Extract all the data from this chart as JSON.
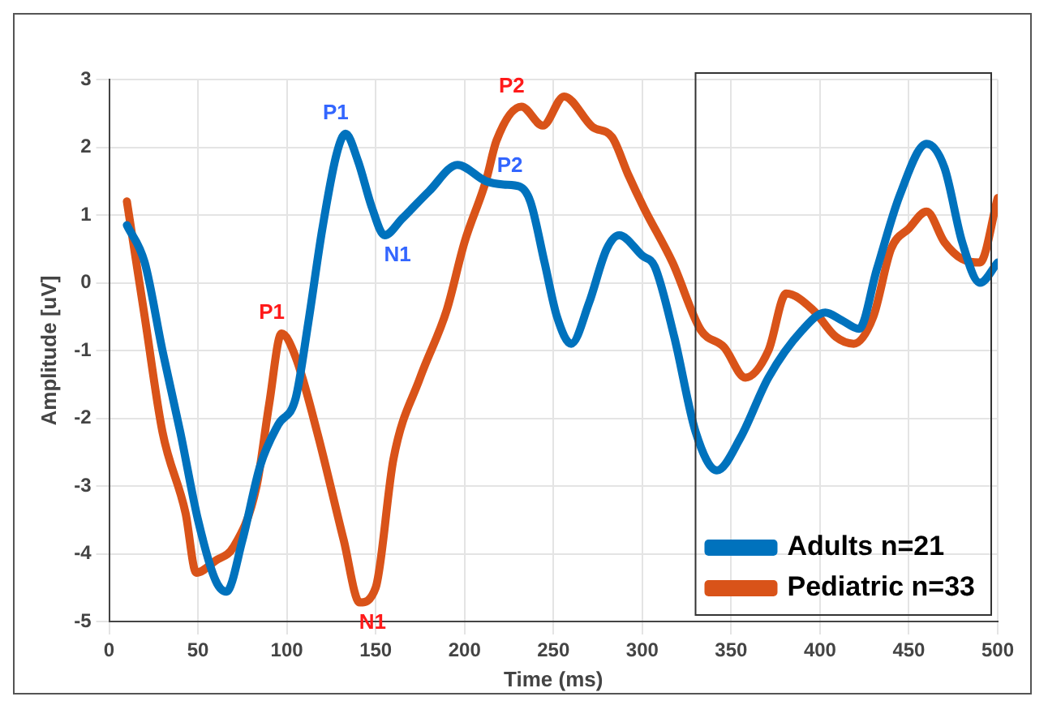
{
  "chart_data": {
    "type": "line",
    "xlabel": "Time (ms)",
    "ylabel": "Amplitude [uV]",
    "xlim": [
      0,
      500
    ],
    "xticks": [
      0,
      50,
      100,
      150,
      200,
      250,
      300,
      350,
      400,
      450,
      500
    ],
    "ylim": [
      -5,
      3
    ],
    "yticks": [
      -5,
      -4,
      -3,
      -2,
      -1,
      0,
      1,
      2,
      3
    ],
    "grid": true,
    "legend": "bottom right",
    "marker": "none",
    "line_style": "solid",
    "series": [
      {
        "name": "Adults n=21",
        "color": "#0072bd",
        "x": [
          10,
          20,
          30,
          40,
          50,
          60,
          66,
          75,
          85,
          95,
          105,
          112,
          120,
          128,
          133,
          140,
          148,
          155,
          165,
          180,
          196,
          212,
          222,
          231,
          237,
          245,
          252,
          260,
          270,
          280,
          287,
          300,
          307,
          318,
          330,
          342,
          355,
          371,
          390,
          403,
          412,
          422,
          432,
          445,
          460,
          470,
          480,
          490,
          500
        ],
        "values": [
          0.85,
          0.3,
          -1,
          -2.2,
          -3.5,
          -4.4,
          -4.56,
          -3.8,
          -2.7,
          -2.1,
          -1.7,
          -0.6,
          0.8,
          1.9,
          2.2,
          1.8,
          1.1,
          0.7,
          0.95,
          1.35,
          1.74,
          1.5,
          1.45,
          1.42,
          1.2,
          0.3,
          -0.5,
          -0.9,
          -0.3,
          0.5,
          0.7,
          0.4,
          0.24,
          -0.8,
          -2.2,
          -2.77,
          -2.3,
          -1.4,
          -0.7,
          -0.44,
          -0.55,
          -0.68,
          0.2,
          1.3,
          2.05,
          1.7,
          0.6,
          0,
          0.3
        ]
      },
      {
        "name": "Pediatric n=33",
        "color": "#d95319",
        "x": [
          10,
          20,
          30,
          43,
          49,
          60,
          70,
          83,
          90,
          97,
          105,
          117,
          132,
          141,
          150,
          160,
          175,
          190,
          200,
          212,
          218,
          232,
          244,
          256,
          272,
          283,
          292,
          301,
          317,
          333,
          346,
          358,
          371,
          381,
          396,
          409,
          419,
          430,
          440,
          450,
          460,
          470,
          480,
          490,
          500
        ],
        "values": [
          1.2,
          -0.5,
          -2.2,
          -3.4,
          -4.28,
          -4.1,
          -3.9,
          -3.0,
          -1.8,
          -0.75,
          -1.1,
          -2.2,
          -3.8,
          -4.72,
          -4.5,
          -2.6,
          -1.4,
          -0.4,
          0.6,
          1.5,
          2.1,
          2.6,
          2.32,
          2.75,
          2.3,
          2.15,
          1.6,
          1.1,
          0.3,
          -0.7,
          -0.95,
          -1.4,
          -1,
          -0.16,
          -0.4,
          -0.8,
          -0.9,
          -0.5,
          0.5,
          0.8,
          1.05,
          0.6,
          0.35,
          0.3,
          1.25
        ]
      }
    ],
    "annotations": [
      {
        "text": "P1",
        "x": 133,
        "y": 2.2
      },
      {
        "text": "N1",
        "x": 155,
        "y": 0.7
      },
      {
        "text": "P2",
        "x": 231,
        "y": 1.42
      },
      {
        "text": "P1",
        "x": 97,
        "y": -0.75
      },
      {
        "text": "N1",
        "x": 141,
        "y": -4.72
      },
      {
        "text": "P2",
        "x": 232,
        "y": 2.6
      }
    ]
  }
}
